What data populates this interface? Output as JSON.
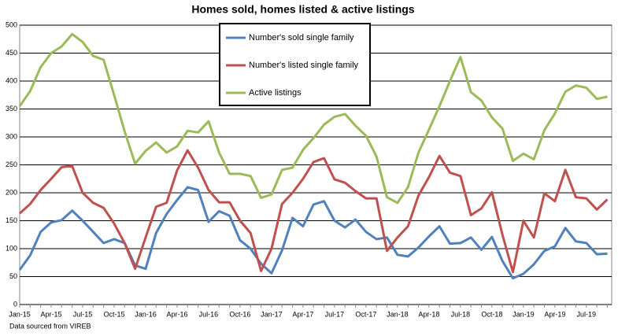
{
  "chart_data": {
    "type": "line",
    "title": "Homes sold, homes listed & active listings",
    "note": "Data sourced from VIREB",
    "categories": [
      "Jan-15",
      null,
      null,
      "Apr-15",
      null,
      null,
      "Jul-15",
      null,
      null,
      "Oct-15",
      null,
      null,
      "Jan-16",
      null,
      null,
      "Apr-16",
      null,
      null,
      "Jul-16",
      null,
      null,
      "Oct-16",
      null,
      null,
      "Jan-17",
      null,
      null,
      "Apr-17",
      null,
      null,
      "Jul-17",
      null,
      null,
      "Oct-17",
      null,
      null,
      "Jan-18",
      null,
      null,
      "Apr-18",
      null,
      null,
      "Jul-18",
      null,
      null,
      "Oct-18",
      null,
      null,
      "Jan-19",
      null,
      null,
      "Apr-19",
      null,
      null,
      "Jul-19",
      null,
      null
    ],
    "series": [
      {
        "name": "Number's sold single family",
        "color": "#4f81bd",
        "values": [
          62,
          88,
          130,
          147,
          151,
          168,
          150,
          130,
          110,
          117,
          110,
          70,
          64,
          128,
          162,
          187,
          210,
          205,
          148,
          167,
          159,
          115,
          100,
          73,
          56,
          97,
          155,
          140,
          179,
          185,
          150,
          138,
          152,
          130,
          117,
          120,
          89,
          86,
          102,
          122,
          140,
          109,
          110,
          120,
          98,
          121,
          78,
          47,
          55,
          72,
          96,
          104,
          137,
          113,
          110,
          90,
          91
        ]
      },
      {
        "name": "Number's listed single family",
        "color": "#c0504d",
        "values": [
          163,
          180,
          205,
          225,
          246,
          248,
          200,
          182,
          173,
          145,
          110,
          64,
          120,
          175,
          182,
          240,
          276,
          245,
          205,
          183,
          183,
          150,
          128,
          60,
          100,
          180,
          200,
          225,
          255,
          262,
          224,
          218,
          203,
          190,
          190,
          96,
          120,
          140,
          195,
          228,
          266,
          236,
          230,
          160,
          172,
          201,
          125,
          58,
          150,
          120,
          199,
          185,
          241,
          192,
          190,
          170,
          188
        ]
      },
      {
        "name": "Active listings",
        "color": "#9bbb59",
        "values": [
          355,
          382,
          425,
          450,
          462,
          484,
          470,
          445,
          438,
          375,
          310,
          252,
          275,
          290,
          272,
          283,
          311,
          308,
          328,
          272,
          234,
          234,
          230,
          191,
          197,
          241,
          245,
          277,
          298,
          322,
          336,
          341,
          320,
          302,
          265,
          192,
          182,
          210,
          272,
          313,
          355,
          400,
          443,
          380,
          365,
          335,
          315,
          257,
          270,
          260,
          312,
          342,
          381,
          392,
          388,
          368,
          372
        ]
      }
    ],
    "ylim": [
      0,
      500
    ],
    "yticks": [
      0,
      50,
      100,
      150,
      200,
      250,
      300,
      350,
      400,
      450,
      500
    ],
    "grid": true
  }
}
